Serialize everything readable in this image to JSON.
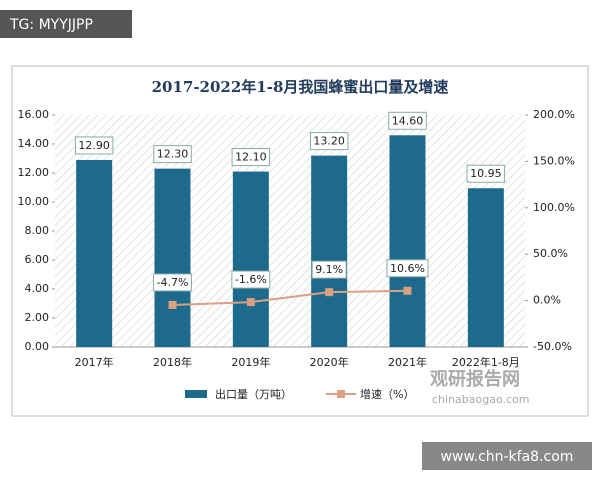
{
  "chart_data": {
    "type": "bar",
    "title": "2017-2022年1-8月我国蜂蜜出口量及增速",
    "categories": [
      "2017年",
      "2018年",
      "2019年",
      "2020年",
      "2021年",
      "2022年1-8月"
    ],
    "series": [
      {
        "name": "出口量（万吨）",
        "type": "bar",
        "color": "#1d6a8c",
        "values": [
          12.9,
          12.3,
          12.1,
          13.2,
          14.6,
          10.95
        ],
        "value_labels": [
          "12.90",
          "12.30",
          "12.10",
          "13.20",
          "14.60",
          "10.95"
        ]
      },
      {
        "name": "增速（%）",
        "type": "line",
        "axis": "y2",
        "color": "#d9a084",
        "values": [
          null,
          -4.7,
          -1.6,
          9.1,
          10.6,
          null
        ],
        "value_labels": [
          null,
          "-4.7%",
          "-1.6%",
          "9.1%",
          "10.6%",
          null
        ]
      }
    ],
    "ylim": [
      0,
      16
    ],
    "yticks": [
      {
        "value": 0,
        "label": "0.00"
      },
      {
        "value": 2,
        "label": "2.00"
      },
      {
        "value": 4,
        "label": "4.00"
      },
      {
        "value": 6,
        "label": "6.00"
      },
      {
        "value": 8,
        "label": "8.00"
      },
      {
        "value": 10,
        "label": "10.00"
      },
      {
        "value": 12,
        "label": "12.00"
      },
      {
        "value": 14,
        "label": "14.00"
      },
      {
        "value": 16,
        "label": "16.00"
      }
    ],
    "y2lim": [
      -50,
      200
    ],
    "y2ticks": [
      {
        "value": -50,
        "label": "-50.0%"
      },
      {
        "value": 0,
        "label": "0.0%"
      },
      {
        "value": 50,
        "label": "50.0%"
      },
      {
        "value": 100,
        "label": "100.0%"
      },
      {
        "value": 150,
        "label": "150.0%"
      },
      {
        "value": 200,
        "label": "200.0%"
      }
    ],
    "legend": "bottom"
  },
  "watermarks": {
    "top_left": "TG: MYYJJPP",
    "logo": "观研报告网",
    "logo_url": "chinabaogao.com",
    "bottom_right": "www.chn-kfa8.com"
  }
}
